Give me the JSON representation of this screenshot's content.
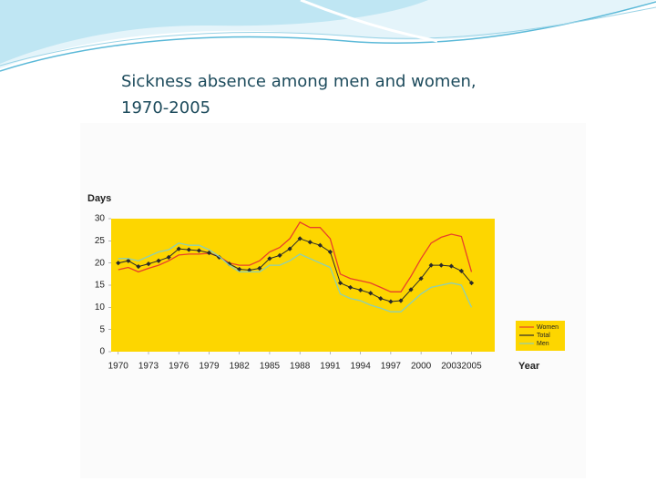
{
  "chart_data": {
    "type": "line",
    "title": "Sickness absence among men and women, 1970-2005",
    "y_label": "Days",
    "x_label": "Year",
    "x": [
      1970,
      1971,
      1972,
      1973,
      1974,
      1975,
      1976,
      1977,
      1978,
      1979,
      1980,
      1981,
      1982,
      1983,
      1984,
      1985,
      1986,
      1987,
      1988,
      1989,
      1990,
      1991,
      1992,
      1993,
      1994,
      1995,
      1996,
      1997,
      1998,
      1999,
      2000,
      2001,
      2002,
      2003,
      2004,
      2005
    ],
    "series": [
      {
        "name": "Women",
        "color": "#e8402a",
        "marker": false,
        "values": [
          18.5,
          19,
          18,
          18.8,
          19.5,
          20.5,
          21.8,
          22,
          22,
          22.2,
          21.5,
          20,
          19.5,
          19.5,
          20.5,
          22.5,
          23.5,
          25.5,
          29.2,
          28,
          28,
          25.5,
          17.5,
          16.5,
          16,
          15.5,
          14.5,
          13.5,
          13.5,
          17,
          21,
          24.5,
          25.8,
          26.5,
          26,
          18
        ]
      },
      {
        "name": "Total",
        "color": "#2a2a2a",
        "marker": true,
        "values": [
          20,
          20.5,
          19.2,
          19.8,
          20.5,
          21.3,
          23.2,
          23,
          22.8,
          22.3,
          21.3,
          19.8,
          18.6,
          18.4,
          18.8,
          21,
          21.7,
          23.2,
          25.5,
          24.7,
          24,
          22.5,
          15.5,
          14.5,
          13.9,
          13.2,
          12,
          11.3,
          11.5,
          14,
          16.5,
          19.5,
          19.5,
          19.3,
          18.2,
          15.5
        ]
      },
      {
        "name": "Men",
        "color": "#8ccfb4",
        "marker": false,
        "values": [
          21,
          21,
          20.5,
          21.5,
          22.5,
          23,
          24.5,
          24,
          24,
          23,
          21.5,
          19.5,
          18,
          18,
          18,
          19.5,
          19.5,
          20.5,
          22,
          21,
          20,
          19,
          13,
          12,
          11.5,
          10.5,
          9.8,
          9,
          9,
          11,
          13,
          14.5,
          15,
          15.5,
          15,
          10
        ]
      }
    ],
    "xlim": [
      1969.3,
      2007.3
    ],
    "xticks": [
      1970,
      1973,
      1976,
      1979,
      1982,
      1985,
      1988,
      1991,
      1994,
      1997,
      2000,
      2003,
      2005
    ],
    "ylim": [
      0,
      30
    ],
    "yticks": [
      0,
      5,
      10,
      15,
      20,
      25,
      30
    ],
    "plot_background": "#fdd600",
    "grid": false,
    "legend": "lower right"
  }
}
